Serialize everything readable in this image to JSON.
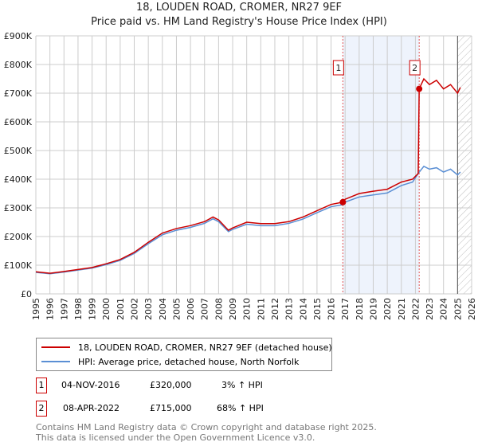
{
  "header": {
    "title": "18, LOUDEN ROAD, CROMER, NR27 9EF",
    "subtitle": "Price paid vs. HM Land Registry's House Price Index (HPI)"
  },
  "chart_data": {
    "type": "line",
    "title": "18, LOUDEN ROAD, CROMER, NR27 9EF",
    "xlim": [
      1995,
      2026
    ],
    "ylim": [
      0,
      900000
    ],
    "x_ticks": [
      "1995",
      "1996",
      "1997",
      "1998",
      "1999",
      "2000",
      "2001",
      "2002",
      "2003",
      "2004",
      "2005",
      "2006",
      "2007",
      "2008",
      "2009",
      "2010",
      "2011",
      "2012",
      "2013",
      "2014",
      "2015",
      "2016",
      "2017",
      "2018",
      "2019",
      "2020",
      "2021",
      "2022",
      "2023",
      "2024",
      "2025",
      "2026"
    ],
    "y_ticks": [
      {
        "v": 0,
        "label": "£0"
      },
      {
        "v": 100000,
        "label": "£100K"
      },
      {
        "v": 200000,
        "label": "£200K"
      },
      {
        "v": 300000,
        "label": "£300K"
      },
      {
        "v": 400000,
        "label": "£400K"
      },
      {
        "v": 500000,
        "label": "£500K"
      },
      {
        "v": 600000,
        "label": "£600K"
      },
      {
        "v": 700000,
        "label": "£700K"
      },
      {
        "v": 800000,
        "label": "£800K"
      },
      {
        "v": 900000,
        "label": "£900K"
      }
    ],
    "grid": true,
    "series": [
      {
        "name": "18, LOUDEN ROAD, CROMER, NR27 9EF (detached house)",
        "color": "#cc0000",
        "x": [
          1995,
          1996,
          1997,
          1998,
          1999,
          2000,
          2001,
          2002,
          2003,
          2004,
          2005,
          2006,
          2007,
          2007.6,
          2008,
          2008.7,
          2009,
          2010,
          2011,
          2012,
          2013,
          2014,
          2015,
          2016,
          2016.84,
          2017,
          2018,
          2019,
          2020,
          2021,
          2021.8,
          2022.2,
          2022.27,
          2022.6,
          2023,
          2023.5,
          2024,
          2024.5,
          2025,
          2025.2
        ],
        "y": [
          77000,
          72000,
          78000,
          85000,
          92000,
          105000,
          120000,
          145000,
          180000,
          212000,
          228000,
          238000,
          252000,
          268000,
          258000,
          222000,
          230000,
          250000,
          245000,
          245000,
          252000,
          268000,
          290000,
          312000,
          320000,
          330000,
          350000,
          358000,
          365000,
          390000,
          400000,
          420000,
          715000,
          750000,
          730000,
          745000,
          715000,
          730000,
          700000,
          720000
        ]
      },
      {
        "name": "HPI: Average price, detached house, North Norfolk",
        "color": "#5b8fd4",
        "x": [
          1995,
          1996,
          1997,
          1998,
          1999,
          2000,
          2001,
          2002,
          2003,
          2004,
          2005,
          2006,
          2007,
          2007.6,
          2008,
          2008.7,
          2009,
          2010,
          2011,
          2012,
          2013,
          2014,
          2015,
          2016,
          2016.84,
          2017,
          2018,
          2019,
          2020,
          2021,
          2021.8,
          2022.2,
          2022.6,
          2023,
          2023.5,
          2024,
          2024.5,
          2025,
          2025.2
        ],
        "y": [
          75000,
          70000,
          76000,
          83000,
          90000,
          102000,
          117000,
          141000,
          175000,
          206000,
          222000,
          232000,
          246000,
          262000,
          252000,
          217000,
          225000,
          243000,
          238000,
          238000,
          246000,
          261000,
          283000,
          304000,
          311000,
          320000,
          338000,
          345000,
          352000,
          378000,
          390000,
          420000,
          445000,
          435000,
          440000,
          425000,
          435000,
          415000,
          425000
        ]
      }
    ],
    "markers": [
      {
        "label": "1",
        "x": 2016.84,
        "y": 320000
      },
      {
        "label": "2",
        "x": 2022.27,
        "y": 715000
      }
    ],
    "shaded_range": [
      2016.84,
      2022.27
    ],
    "hatched_from": 2025.0
  },
  "legend": {
    "items": [
      "18, LOUDEN ROAD, CROMER, NR27 9EF (detached house)",
      "HPI: Average price, detached house, North Norfolk"
    ]
  },
  "transactions": [
    {
      "num": "1",
      "date": "04-NOV-2016",
      "price": "£320,000",
      "hpi": "3% ↑ HPI"
    },
    {
      "num": "2",
      "date": "08-APR-2022",
      "price": "£715,000",
      "hpi": "68% ↑ HPI"
    }
  ],
  "footer": {
    "line1": "Contains HM Land Registry data © Crown copyright and database right 2025.",
    "line2": "This data is licensed under the Open Government Licence v3.0."
  }
}
